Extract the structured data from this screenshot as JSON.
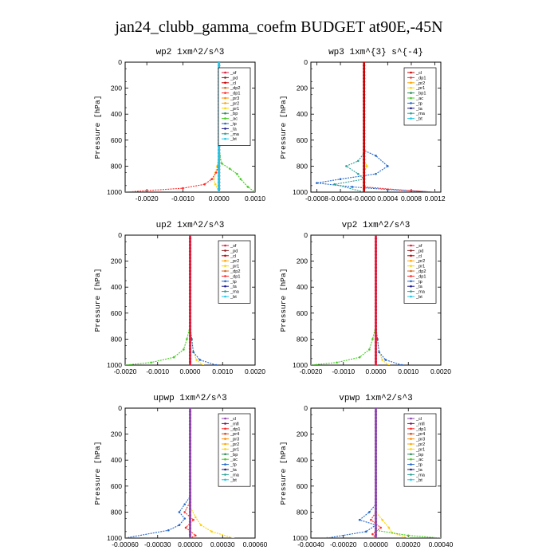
{
  "figure_title": "jan24_clubb_gamma_coefm  BUDGET at90E,-45N",
  "colors": {
    "sf": "#e0193a",
    "pd": "#8b1a1a",
    "cl": "#cc0000",
    "dp2": "#d2691e",
    "pr3": "#ff8c00",
    "pr2": "#ffa500",
    "pr1": "#ffd200",
    "bp": "#2e8b57",
    "ac": "#44cc22",
    "tp": "#2266cc",
    "ta": "#1a1a8b",
    "ma": "#2aa198",
    "bt": "#22c5e8",
    "dp1": "#ff2a2a",
    "mfl": "#7a0b5a",
    "dp4": "#b8002a",
    "pr4": "#d4481a",
    "cl_purple": "#8e44ad"
  },
  "chart_data": [
    {
      "type": "line",
      "title": "wp2   1xm^2/s^3",
      "ylabel": "Pressure  [hPa]",
      "xlim": [
        -0.0026,
        0.001
      ],
      "ylim": [
        1000,
        0
      ],
      "x_ticks": [
        "-0.0020",
        "-0.0010",
        "0.0000",
        "0.0010"
      ],
      "x_tick_values": [
        -0.002,
        -0.001,
        0.0,
        0.001
      ],
      "y_ticks": [
        "0",
        "200",
        "400",
        "600",
        "800",
        "1000"
      ],
      "legend": [
        "_sf",
        "_pd",
        "_cl",
        "_dp2",
        "_dp1",
        "_pr3",
        "_pr2",
        "_pr1",
        "_bp",
        "_ac",
        "_tp",
        "_ta",
        "_ma",
        "_bt"
      ],
      "legend_keys": [
        "sf",
        "pd",
        "cl",
        "dp2",
        "dp1",
        "pr3",
        "pr2",
        "pr1",
        "bp",
        "ac",
        "tp",
        "ta",
        "ma",
        "bt"
      ],
      "legend_position": "top-right",
      "series": [
        {
          "key": "ac",
          "points": [
            [
              0.0,
              0
            ],
            [
              0.0,
              600
            ],
            [
              2e-05,
              720
            ],
            [
              8e-05,
              780
            ],
            [
              0.0003,
              820
            ],
            [
              0.0005,
              860
            ],
            [
              0.0006,
              900
            ],
            [
              0.0008,
              960
            ],
            [
              0.001,
              1000
            ]
          ]
        },
        {
          "key": "pr1",
          "points": [
            [
              0.0,
              0
            ],
            [
              0.0,
              700
            ],
            [
              -5e-05,
              800
            ],
            [
              -0.0001,
              850
            ],
            [
              -0.00015,
              900
            ],
            [
              -0.0001,
              940
            ],
            [
              0.0,
              1000
            ]
          ]
        },
        {
          "key": "dp1",
          "points": [
            [
              0.0,
              0
            ],
            [
              0.0,
              700
            ],
            [
              -2e-05,
              800
            ],
            [
              -8e-05,
              850
            ],
            [
              -0.0002,
              900
            ],
            [
              -0.0004,
              940
            ],
            [
              -0.001,
              970
            ],
            [
              -0.0026,
              1000
            ]
          ]
        },
        {
          "key": "pd",
          "points": [
            [
              0.0,
              0
            ],
            [
              0.0,
              1000
            ]
          ]
        },
        {
          "key": "bt",
          "points": [
            [
              0.0,
              0
            ],
            [
              0.0,
              1000
            ]
          ]
        }
      ]
    },
    {
      "type": "line",
      "title": "wp3   1xm^{3} s^{-4}",
      "ylabel": "Pressure  [hPa]",
      "xlim": [
        -0.0009,
        0.0013
      ],
      "ylim": [
        1000,
        0
      ],
      "x_ticks": [
        "-0.0008",
        "-0.0004",
        "-0.0000",
        "0.0004",
        "0.0008",
        "0.0012"
      ],
      "x_tick_values": [
        -0.0008,
        -0.0004,
        0.0,
        0.0004,
        0.0008,
        0.0012
      ],
      "y_ticks": [
        "0",
        "200",
        "400",
        "600",
        "800",
        "1000"
      ],
      "legend": [
        "_cl",
        "_dp1",
        "_pr2",
        "_pr1",
        "_bp1",
        "_ac",
        "_tp",
        "_ta",
        "_ma",
        "_bt"
      ],
      "legend_keys": [
        "cl",
        "dp1",
        "pr2",
        "pr1",
        "bp",
        "ac",
        "tp",
        "ta",
        "ma",
        "bt"
      ],
      "legend_position": "top-right",
      "series": [
        {
          "key": "tp",
          "points": [
            [
              0.0,
              0
            ],
            [
              0.0,
              680
            ],
            [
              0.0002,
              720
            ],
            [
              0.0004,
              800
            ],
            [
              0.0002,
              860
            ],
            [
              -0.0004,
              900
            ],
            [
              -0.0008,
              930
            ],
            [
              -0.0002,
              960
            ],
            [
              0.0004,
              980
            ],
            [
              0.0012,
              1000
            ]
          ]
        },
        {
          "key": "ma",
          "points": [
            [
              0.0,
              0
            ],
            [
              0.0,
              700
            ],
            [
              -0.0001,
              760
            ],
            [
              -0.0003,
              800
            ],
            [
              -0.0001,
              860
            ],
            [
              0.0,
              900
            ],
            [
              -0.0005,
              940
            ],
            [
              0.0,
              1000
            ]
          ]
        },
        {
          "key": "pr1",
          "points": [
            [
              0.0,
              0
            ],
            [
              0.0,
              760
            ],
            [
              5e-05,
              800
            ],
            [
              0.0,
              840
            ],
            [
              0.0,
              1000
            ]
          ]
        },
        {
          "key": "dp1",
          "points": [
            [
              0.0,
              0
            ],
            [
              0.0,
              960
            ],
            [
              0.0008,
              990
            ],
            [
              0.0012,
              1000
            ]
          ]
        },
        {
          "key": "cl",
          "points": [
            [
              0.0,
              0
            ],
            [
              0.0,
              1000
            ]
          ]
        }
      ]
    },
    {
      "type": "line",
      "title": "up2   1xm^2/s^3",
      "ylabel": "Pressure  [hPa]",
      "xlim": [
        -0.002,
        0.002
      ],
      "ylim": [
        1000,
        0
      ],
      "x_ticks": [
        "-0.0020",
        "-0.0010",
        "0.0000",
        "0.0010",
        "0.0020"
      ],
      "x_tick_values": [
        -0.002,
        -0.001,
        0.0,
        0.001,
        0.002
      ],
      "y_ticks": [
        "0",
        "200",
        "400",
        "600",
        "800",
        "1000"
      ],
      "legend": [
        "_sf",
        "_pd",
        "_cl",
        "_pr2",
        "_pr1",
        "_dp2",
        "_dp1",
        "_tp",
        "_ta",
        "_ma",
        "_bt"
      ],
      "legend_keys": [
        "sf",
        "pd",
        "cl",
        "pr2",
        "pr1",
        "dp2",
        "dp1",
        "tp",
        "ta",
        "ma",
        "bt"
      ],
      "legend_position": "top-right",
      "series": [
        {
          "key": "ac",
          "points": [
            [
              0.0,
              0
            ],
            [
              0.0,
              700
            ],
            [
              -0.0001,
              800
            ],
            [
              -0.0002,
              880
            ],
            [
              -0.0005,
              940
            ],
            [
              -0.0012,
              980
            ],
            [
              -0.002,
              1000
            ]
          ]
        },
        {
          "key": "pr1",
          "points": [
            [
              0.0,
              0
            ],
            [
              0.0,
              700
            ],
            [
              5e-05,
              800
            ],
            [
              0.0001,
              900
            ],
            [
              0.0002,
              960
            ],
            [
              0.0004,
              1000
            ]
          ]
        },
        {
          "key": "tp",
          "points": [
            [
              0.0,
              0
            ],
            [
              0.0,
              700
            ],
            [
              5e-05,
              800
            ],
            [
              0.0001,
              900
            ],
            [
              0.0003,
              960
            ],
            [
              0.0008,
              1000
            ]
          ]
        },
        {
          "key": "sf",
          "points": [
            [
              0.0,
              0
            ],
            [
              0.0,
              1000
            ]
          ]
        }
      ]
    },
    {
      "type": "line",
      "title": "vp2   1xm^2/s^3",
      "ylabel": "Pressure  [hPa]",
      "xlim": [
        -0.002,
        0.002
      ],
      "ylim": [
        1000,
        0
      ],
      "x_ticks": [
        "-0.0020",
        "-0.0010",
        "0.0000",
        "0.0010",
        "0.0020"
      ],
      "x_tick_values": [
        -0.002,
        -0.001,
        0.0,
        0.001,
        0.002
      ],
      "y_ticks": [
        "0",
        "200",
        "400",
        "600",
        "800",
        "1000"
      ],
      "legend": [
        "_sf",
        "_pd",
        "_cl",
        "_pr2",
        "_pr1",
        "_dp2",
        "_dp1",
        "_tp",
        "_ta",
        "_ma",
        "_bt"
      ],
      "legend_keys": [
        "sf",
        "pd",
        "cl",
        "pr2",
        "pr1",
        "dp2",
        "dp1",
        "tp",
        "ta",
        "ma",
        "bt"
      ],
      "legend_position": "top-right",
      "series": [
        {
          "key": "ac",
          "points": [
            [
              0.0,
              0
            ],
            [
              0.0,
              700
            ],
            [
              -0.0001,
              800
            ],
            [
              -0.0002,
              880
            ],
            [
              -0.0005,
              940
            ],
            [
              -0.0012,
              980
            ],
            [
              -0.002,
              1000
            ]
          ]
        },
        {
          "key": "pr1",
          "points": [
            [
              0.0,
              0
            ],
            [
              0.0,
              700
            ],
            [
              5e-05,
              800
            ],
            [
              0.0001,
              900
            ],
            [
              0.0002,
              960
            ],
            [
              0.0004,
              1000
            ]
          ]
        },
        {
          "key": "tp",
          "points": [
            [
              0.0,
              0
            ],
            [
              0.0,
              700
            ],
            [
              5e-05,
              800
            ],
            [
              0.0001,
              900
            ],
            [
              0.0003,
              960
            ],
            [
              0.0008,
              1000
            ]
          ]
        },
        {
          "key": "sf",
          "points": [
            [
              0.0,
              0
            ],
            [
              0.0,
              1000
            ]
          ]
        }
      ]
    },
    {
      "type": "line",
      "title": "upwp   1xm^2/s^3",
      "ylabel": "Pressure  [hPa]",
      "xlim": [
        -0.0006,
        0.0006
      ],
      "ylim": [
        1000,
        0
      ],
      "x_ticks": [
        "-0.00060",
        "-0.00030",
        "0.00000",
        "0.00030",
        "0.00060"
      ],
      "x_tick_values": [
        -0.0006,
        -0.0003,
        0.0,
        0.0003,
        0.0006
      ],
      "y_ticks": [
        "0",
        "200",
        "400",
        "600",
        "800",
        "1000"
      ],
      "legend": [
        "_cl",
        "_mfl",
        "_dp1",
        "_pr4",
        "_pr3",
        "_pr2",
        "_pr1",
        "_bp",
        "_ac",
        "_tp",
        "_ta",
        "_ma",
        "_bt"
      ],
      "legend_keys": [
        "cl_purple",
        "mfl",
        "dp1",
        "pr4",
        "pr3",
        "pr2",
        "pr1",
        "bp",
        "ac",
        "tp",
        "ta",
        "ma",
        "bt"
      ],
      "legend_position": "top-right",
      "series": [
        {
          "key": "tp",
          "points": [
            [
              0.0,
              0
            ],
            [
              0.0,
              680
            ],
            [
              -5e-05,
              740
            ],
            [
              -0.0001,
              800
            ],
            [
              -5e-05,
              850
            ],
            [
              -0.0001,
              900
            ],
            [
              -0.0002,
              940
            ],
            [
              -0.0006,
              1000
            ]
          ]
        },
        {
          "key": "pr1",
          "points": [
            [
              0.0,
              0
            ],
            [
              0.0,
              760
            ],
            [
              5e-05,
              840
            ],
            [
              0.0001,
              900
            ],
            [
              0.0002,
              950
            ],
            [
              0.0004,
              1000
            ]
          ]
        },
        {
          "key": "dp1",
          "points": [
            [
              0.0,
              0
            ],
            [
              0.0,
              720
            ],
            [
              -5e-05,
              800
            ],
            [
              3e-05,
              860
            ],
            [
              -4e-05,
              920
            ],
            [
              5e-05,
              980
            ],
            [
              0.0,
              1000
            ]
          ]
        },
        {
          "key": "cl_purple",
          "points": [
            [
              0.0,
              0
            ],
            [
              0.0,
              1000
            ]
          ]
        }
      ]
    },
    {
      "type": "line",
      "title": "vpwp   1xm^2/s^3",
      "ylabel": "Pressure  [hPa]",
      "xlim": [
        -0.0004,
        0.0004
      ],
      "ylim": [
        1000,
        0
      ],
      "x_ticks": [
        "-0.00040",
        "-0.00020",
        "0.00000",
        "0.00020",
        "0.00040"
      ],
      "x_tick_values": [
        -0.0004,
        -0.0002,
        0.0,
        0.0002,
        0.0004
      ],
      "y_ticks": [
        "0",
        "200",
        "400",
        "600",
        "800",
        "1000"
      ],
      "legend": [
        "_cl",
        "_mfl",
        "_dp1",
        "_pr4",
        "_pr3",
        "_pr2",
        "_pr1",
        "_bp",
        "_ac",
        "_tp",
        "_ta",
        "_ma",
        "_bt"
      ],
      "legend_keys": [
        "cl_purple",
        "mfl",
        "dp1",
        "pr4",
        "pr3",
        "pr2",
        "pr1",
        "bp",
        "ac",
        "tp",
        "ta",
        "ma",
        "bt"
      ],
      "legend_position": "top-right",
      "series": [
        {
          "key": "tp",
          "points": [
            [
              0.0,
              0
            ],
            [
              0.0,
              740
            ],
            [
              -4e-05,
              800
            ],
            [
              -0.0001,
              860
            ],
            [
              0.0,
              900
            ],
            [
              -6e-05,
              950
            ],
            [
              -0.0003,
              1000
            ]
          ]
        },
        {
          "key": "pr1",
          "points": [
            [
              0.0,
              0
            ],
            [
              0.0,
              800
            ],
            [
              4e-05,
              860
            ],
            [
              8e-05,
              920
            ],
            [
              0.0001,
              960
            ],
            [
              0.0002,
              1000
            ]
          ]
        },
        {
          "key": "dp1",
          "points": [
            [
              0.0,
              0
            ],
            [
              0.0,
              800
            ],
            [
              -3e-05,
              860
            ],
            [
              3e-05,
              920
            ],
            [
              -2e-05,
              970
            ],
            [
              0.0,
              1000
            ]
          ]
        },
        {
          "key": "ac",
          "points": [
            [
              0.0,
              0
            ],
            [
              0.0,
              940
            ],
            [
              0.0002,
              980
            ],
            [
              0.0004,
              1000
            ]
          ]
        },
        {
          "key": "cl_purple",
          "points": [
            [
              0.0,
              0
            ],
            [
              0.0,
              1000
            ]
          ]
        }
      ]
    }
  ]
}
